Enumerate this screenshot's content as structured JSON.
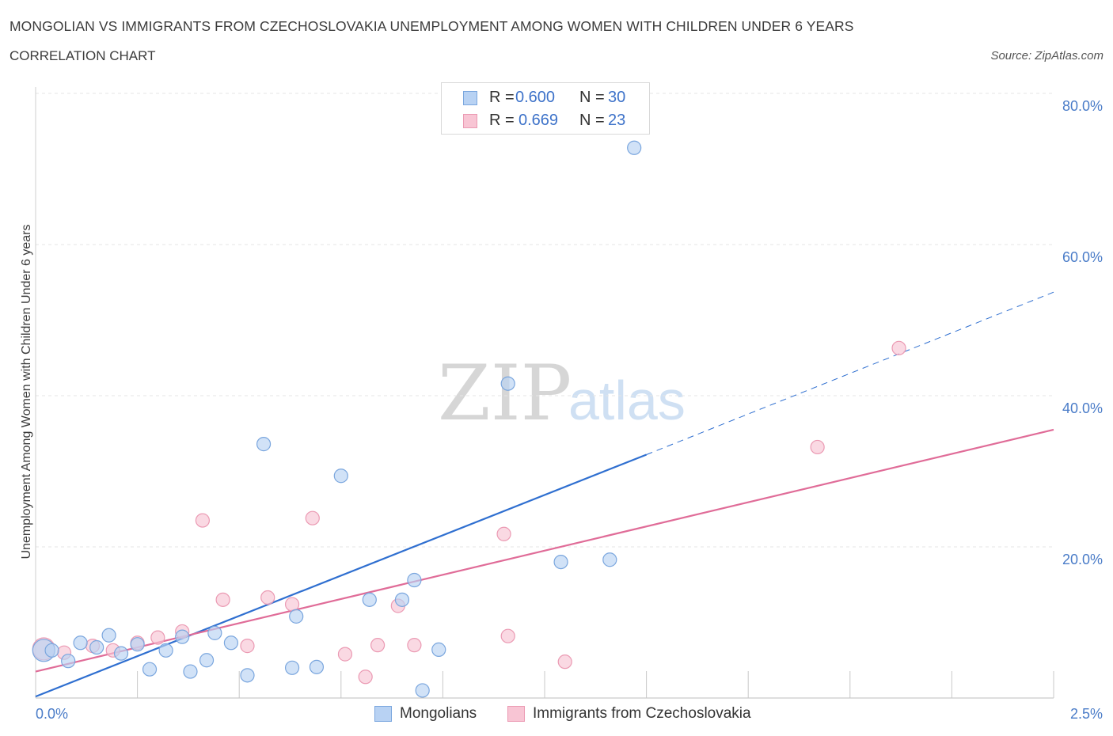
{
  "header": {
    "title": "MONGOLIAN VS IMMIGRANTS FROM CZECHOSLOVAKIA UNEMPLOYMENT AMONG WOMEN WITH CHILDREN UNDER 6 YEARS",
    "subtitle": "CORRELATION CHART",
    "source": "Source: ZipAtlas.com"
  },
  "watermark": {
    "zip": "ZIP",
    "atlas": "atlas"
  },
  "legend": {
    "rows": [
      {
        "r_label": "R =",
        "r_value": "0.600",
        "n_label": "N =",
        "n_value": "30"
      },
      {
        "r_label": "R =",
        "r_value": "0.669",
        "n_label": "N =",
        "n_value": "23"
      }
    ]
  },
  "colors": {
    "series1_fill": "#b8d2f3",
    "series1_stroke": "#7aa6de",
    "series1_line": "#2f6fd0",
    "series2_fill": "#f8c5d4",
    "series2_stroke": "#eb9ab3",
    "series2_line": "#e06c98",
    "grid": "#e6e6e6",
    "tick_text": "#4a7cc8"
  },
  "chart_data": {
    "type": "scatter",
    "title": "MONGOLIAN VS IMMIGRANTS FROM CZECHOSLOVAKIA UNEMPLOYMENT AMONG WOMEN WITH CHILDREN UNDER 6 YEARS",
    "subtitle": "CORRELATION CHART",
    "xlabel": "",
    "ylabel": "Unemployment Among Women with Children Under 6 years",
    "xlim": [
      0,
      2.5
    ],
    "ylim": [
      0,
      80
    ],
    "x_ticks": [
      "0.0%",
      "2.5%"
    ],
    "y_ticks": [
      {
        "value": 20,
        "label": "20.0%"
      },
      {
        "value": 40,
        "label": "40.0%"
      },
      {
        "value": 60,
        "label": "60.0%"
      },
      {
        "value": 80,
        "label": "80.0%"
      }
    ],
    "grid": true,
    "legend_position": "top-center",
    "series": [
      {
        "name": "Mongolians",
        "points": [
          [
            0.02,
            6.3
          ],
          [
            0.04,
            6.3
          ],
          [
            0.08,
            4.9
          ],
          [
            0.11,
            7.3
          ],
          [
            0.15,
            6.7
          ],
          [
            0.18,
            8.3
          ],
          [
            0.21,
            5.9
          ],
          [
            0.25,
            7.1
          ],
          [
            0.28,
            3.8
          ],
          [
            0.32,
            6.3
          ],
          [
            0.36,
            8.1
          ],
          [
            0.38,
            3.5
          ],
          [
            0.42,
            5.0
          ],
          [
            0.44,
            8.6
          ],
          [
            0.48,
            7.3
          ],
          [
            0.52,
            3.0
          ],
          [
            0.56,
            33.6
          ],
          [
            0.63,
            4.0
          ],
          [
            0.64,
            10.8
          ],
          [
            0.69,
            4.1
          ],
          [
            0.75,
            29.4
          ],
          [
            0.82,
            13.0
          ],
          [
            0.9,
            13.0
          ],
          [
            0.93,
            15.6
          ],
          [
            0.95,
            1.0
          ],
          [
            0.99,
            6.4
          ],
          [
            1.16,
            41.6
          ],
          [
            1.29,
            18.0
          ],
          [
            1.41,
            18.3
          ],
          [
            1.47,
            72.8
          ]
        ],
        "trend": {
          "x1": 0,
          "y1": 0.2,
          "x2": 1.5,
          "y2": 32.2,
          "dash_to_x": 2.5,
          "dash_to_y": 53.7
        }
      },
      {
        "name": "Immigrants from Czechoslovakia",
        "points": [
          [
            0.02,
            6.5
          ],
          [
            0.07,
            6.0
          ],
          [
            0.14,
            6.9
          ],
          [
            0.19,
            6.3
          ],
          [
            0.25,
            7.3
          ],
          [
            0.3,
            8.0
          ],
          [
            0.36,
            8.8
          ],
          [
            0.41,
            23.5
          ],
          [
            0.46,
            13.0
          ],
          [
            0.52,
            6.9
          ],
          [
            0.57,
            13.3
          ],
          [
            0.63,
            12.4
          ],
          [
            0.68,
            23.8
          ],
          [
            0.76,
            5.8
          ],
          [
            0.81,
            2.8
          ],
          [
            0.84,
            7.0
          ],
          [
            0.89,
            12.2
          ],
          [
            0.93,
            7.0
          ],
          [
            1.15,
            21.7
          ],
          [
            1.16,
            8.2
          ],
          [
            1.3,
            4.8
          ],
          [
            1.92,
            33.2
          ],
          [
            2.12,
            46.3
          ]
        ],
        "trend": {
          "x1": 0,
          "y1": 3.5,
          "x2": 2.5,
          "y2": 35.5
        }
      }
    ]
  }
}
